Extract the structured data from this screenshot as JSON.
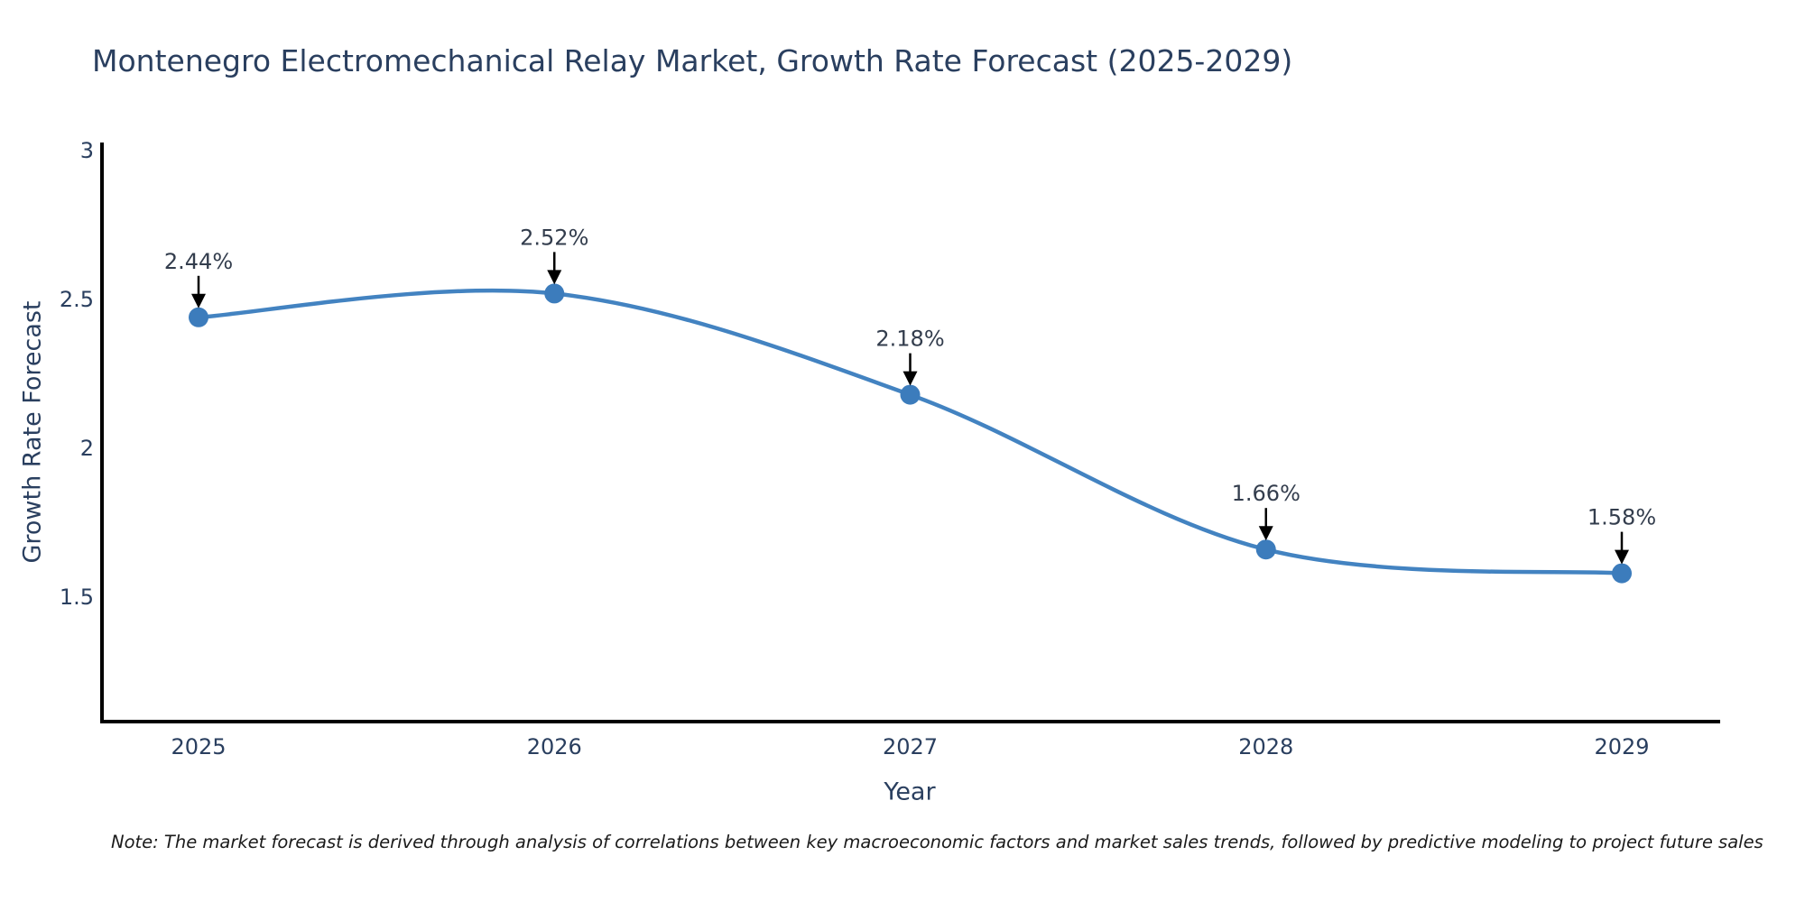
{
  "page": {
    "background": "#ffffff"
  },
  "chart_data": {
    "type": "line",
    "title": "Montenegro Electromechanical Relay Market, Growth Rate Forecast (2025-2029)",
    "xlabel": "Year",
    "ylabel": "Growth Rate Forecast",
    "categories": [
      2025,
      2026,
      2027,
      2028,
      2029
    ],
    "series": [
      {
        "name": "Growth Rate Forecast",
        "values": [
          2.44,
          2.52,
          2.18,
          1.66,
          1.58
        ]
      }
    ],
    "point_labels": [
      "2.44%",
      "2.52%",
      "2.18%",
      "1.66%",
      "1.58%"
    ],
    "y_ticks": [
      {
        "label": "3",
        "value": 3
      },
      {
        "label": "2.5",
        "value": 2.5
      },
      {
        "label": "2",
        "value": 2
      },
      {
        "label": "1.5",
        "value": 1.5
      }
    ],
    "x_tick_labels": [
      "2025",
      "2026",
      "2027",
      "2028",
      "2029"
    ],
    "line_shape": "spline",
    "grid": false,
    "legend_position": "none",
    "colors": {
      "line": "#4383c1",
      "marker": "#3c7cbc",
      "axis": "#000000",
      "annotation_arrow": "#000000",
      "title_text": "#2a3f5f",
      "tick_text": "#2a3f5f",
      "annotation_text": "#333d4d"
    }
  },
  "note": {
    "text": "Note: The market forecast is derived through analysis of correlations between key macroeconomic factors and market sales trends, followed by predictive modeling to project future sales"
  }
}
